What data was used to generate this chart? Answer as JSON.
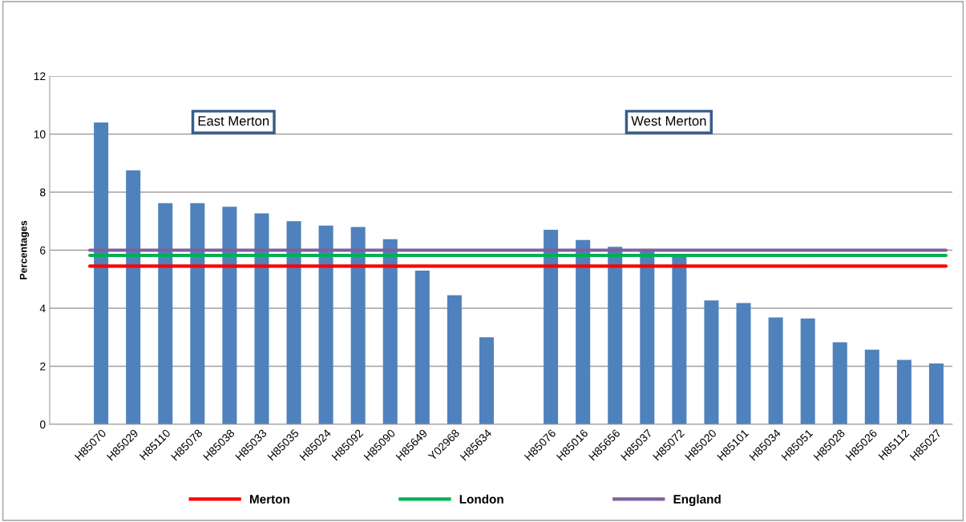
{
  "chart_data": {
    "type": "bar",
    "ylabel": "Percentages",
    "categories": [
      "H85070",
      "H85029",
      "H85110",
      "H85078",
      "H85038",
      "H85033",
      "H85035",
      "H85024",
      "H85092",
      "H85090",
      "H85649",
      "Y02968",
      "H85634",
      null,
      "H85076",
      "H85016",
      "H85656",
      "H85037",
      "H85072",
      "H85020",
      "H85101",
      "H85034",
      "H85051",
      "H85028",
      "H85026",
      "H85112",
      "H85027"
    ],
    "values": [
      10.4,
      8.75,
      7.62,
      7.62,
      7.5,
      7.27,
      7.0,
      6.85,
      6.8,
      6.38,
      5.3,
      4.45,
      3.0,
      null,
      6.7,
      6.35,
      6.12,
      5.98,
      5.8,
      4.27,
      4.18,
      3.68,
      3.65,
      2.83,
      2.57,
      2.22,
      2.1
    ],
    "color": "#4f81bd",
    "ylim": [
      0,
      12
    ],
    "yticks": [
      0,
      2,
      4,
      6,
      8,
      10,
      12
    ],
    "grid": "y",
    "legend": "bottom",
    "ref_lines": [
      {
        "axis": "y",
        "value": 5.45,
        "label": "Merton",
        "color": "#ff0000"
      },
      {
        "axis": "y",
        "value": 5.82,
        "label": "London",
        "color": "#00b050"
      },
      {
        "axis": "y",
        "value": 6.0,
        "label": "England",
        "color": "#7f60a0"
      }
    ],
    "annotations": [
      "East Merton",
      "West Merton"
    ]
  }
}
